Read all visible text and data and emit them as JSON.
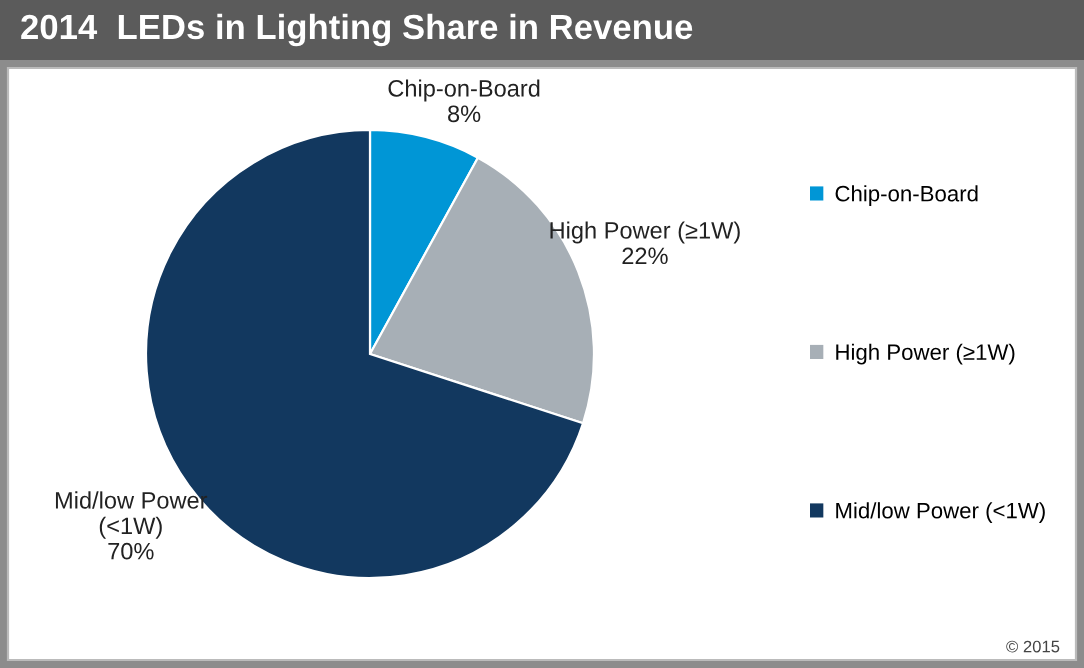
{
  "chart_data": {
    "type": "pie",
    "title": "2014  LEDs in Lighting Share in Revenue",
    "categories": [
      "Chip-on-Board",
      "High Power (≥1W)",
      "Mid/low Power (<1W)"
    ],
    "values": [
      8,
      22,
      70
    ],
    "colors": [
      "#0096d6",
      "#a7afb6",
      "#12385f"
    ],
    "value_labels": [
      "Chip-on-Board\n8%",
      "High Power (≥1W)\n22%",
      "Mid/low Power\n(<1W)\n70%"
    ],
    "legend": "right",
    "annotations": [
      "© 2015"
    ]
  }
}
